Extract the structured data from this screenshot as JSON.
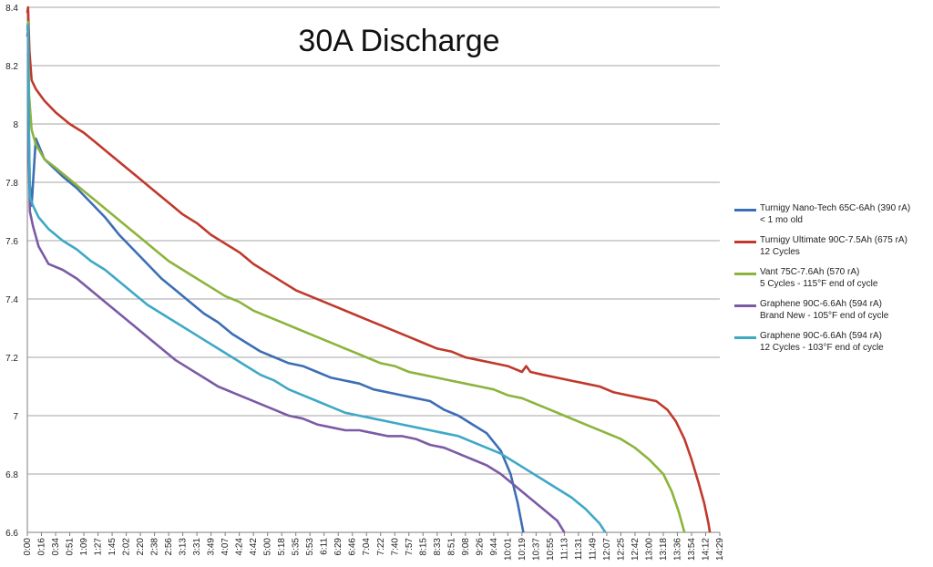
{
  "chart_data": {
    "type": "line",
    "title": "30A Discharge",
    "xlabel": "",
    "ylabel": "",
    "ylim": [
      6.6,
      8.4
    ],
    "y_ticks": [
      "6.6",
      "6.8",
      "7",
      "7.2",
      "7.4",
      "7.6",
      "7.8",
      "8",
      "8.2",
      "8.4"
    ],
    "x_ticks": [
      "0:00",
      "0:16",
      "0:34",
      "0:51",
      "1:09",
      "1:27",
      "1:45",
      "2:02",
      "2:20",
      "2:38",
      "2:56",
      "3:13",
      "3:31",
      "3:49",
      "4:07",
      "4:24",
      "4:42",
      "5:00",
      "5:18",
      "5:35",
      "5:53",
      "6:11",
      "6:29",
      "6:46",
      "7:04",
      "7:22",
      "7:40",
      "7:57",
      "8:15",
      "8:33",
      "8:51",
      "9:08",
      "9:26",
      "9:44",
      "10:01",
      "10:19",
      "10:37",
      "10:55",
      "11:13",
      "11:31",
      "11:49",
      "12:07",
      "12:25",
      "12:42",
      "13:00",
      "13:18",
      "13:36",
      "13:54",
      "14:12",
      "14:29"
    ],
    "x_unit": "minutes",
    "grid": true,
    "legend_position": "right",
    "series": [
      {
        "name": "Turnigy Nano-Tech 65C-6Ah (390 rA)",
        "name_line2": "< 1 mo old",
        "color": "#3c6eb4",
        "points": [
          [
            0,
            8.3
          ],
          [
            0.05,
            8.32
          ],
          [
            0.1,
            8.0
          ],
          [
            0.17,
            7.8
          ],
          [
            0.3,
            7.72
          ],
          [
            0.6,
            7.95
          ],
          [
            1.2,
            7.88
          ],
          [
            2.5,
            7.82
          ],
          [
            3.5,
            7.78
          ],
          [
            4.5,
            7.73
          ],
          [
            5.5,
            7.68
          ],
          [
            6.5,
            7.62
          ],
          [
            7.5,
            7.57
          ],
          [
            8.5,
            7.52
          ],
          [
            9.5,
            7.47
          ],
          [
            10.5,
            7.43
          ],
          [
            11.5,
            7.39
          ],
          [
            12.5,
            7.35
          ],
          [
            13.5,
            7.32
          ],
          [
            14.5,
            7.28
          ],
          [
            15.5,
            7.25
          ],
          [
            16.5,
            7.22
          ],
          [
            17.5,
            7.2
          ],
          [
            18.5,
            7.18
          ],
          [
            19.5,
            7.17
          ],
          [
            20.5,
            7.15
          ],
          [
            21.5,
            7.13
          ],
          [
            22.5,
            7.12
          ],
          [
            23.5,
            7.11
          ],
          [
            24.5,
            7.09
          ],
          [
            25.5,
            7.08
          ],
          [
            26.5,
            7.07
          ],
          [
            27.5,
            7.06
          ],
          [
            28.5,
            7.05
          ],
          [
            29.5,
            7.02
          ],
          [
            30.5,
            7.0
          ],
          [
            31.5,
            6.97
          ],
          [
            32.5,
            6.94
          ],
          [
            33.5,
            6.88
          ],
          [
            34.2,
            6.8
          ],
          [
            34.7,
            6.7
          ],
          [
            35.1,
            6.6
          ]
        ]
      },
      {
        "name": "Turnigy Ultimate 90C-7.5Ah (675 rA)",
        "name_line2": "12 Cycles",
        "color": "#c0392b",
        "points": [
          [
            0,
            8.38
          ],
          [
            0.05,
            8.4
          ],
          [
            0.15,
            8.25
          ],
          [
            0.3,
            8.15
          ],
          [
            0.6,
            8.12
          ],
          [
            1.2,
            8.08
          ],
          [
            2,
            8.04
          ],
          [
            3,
            8.0
          ],
          [
            4,
            7.97
          ],
          [
            5,
            7.93
          ],
          [
            6,
            7.89
          ],
          [
            7,
            7.85
          ],
          [
            8,
            7.81
          ],
          [
            9,
            7.77
          ],
          [
            10,
            7.73
          ],
          [
            11,
            7.69
          ],
          [
            12,
            7.66
          ],
          [
            13,
            7.62
          ],
          [
            14,
            7.59
          ],
          [
            15,
            7.56
          ],
          [
            16,
            7.52
          ],
          [
            17,
            7.49
          ],
          [
            18,
            7.46
          ],
          [
            19,
            7.43
          ],
          [
            20,
            7.41
          ],
          [
            21,
            7.39
          ],
          [
            22,
            7.37
          ],
          [
            23,
            7.35
          ],
          [
            24,
            7.33
          ],
          [
            25,
            7.31
          ],
          [
            26,
            7.29
          ],
          [
            27,
            7.27
          ],
          [
            28,
            7.25
          ],
          [
            29,
            7.23
          ],
          [
            30,
            7.22
          ],
          [
            31,
            7.2
          ],
          [
            32,
            7.19
          ],
          [
            33,
            7.18
          ],
          [
            34,
            7.17
          ],
          [
            35,
            7.15
          ],
          [
            35.3,
            7.17
          ],
          [
            35.6,
            7.15
          ],
          [
            36.5,
            7.14
          ],
          [
            37.5,
            7.13
          ],
          [
            38.5,
            7.12
          ],
          [
            39.5,
            7.11
          ],
          [
            40.5,
            7.1
          ],
          [
            41.5,
            7.08
          ],
          [
            42.5,
            7.07
          ],
          [
            43.5,
            7.06
          ],
          [
            44.5,
            7.05
          ],
          [
            45.3,
            7.02
          ],
          [
            45.9,
            6.98
          ],
          [
            46.5,
            6.92
          ],
          [
            47.0,
            6.85
          ],
          [
            47.5,
            6.77
          ],
          [
            47.9,
            6.7
          ],
          [
            48.2,
            6.63
          ],
          [
            48.3,
            6.6
          ]
        ]
      },
      {
        "name": "Vant 75C-7.6Ah (570 rA)",
        "name_line2": "5 Cycles - 115°F end of cycle",
        "color": "#8cb43c",
        "points": [
          [
            0,
            8.33
          ],
          [
            0.05,
            8.35
          ],
          [
            0.12,
            8.1
          ],
          [
            0.3,
            7.98
          ],
          [
            0.6,
            7.93
          ],
          [
            1.2,
            7.88
          ],
          [
            2,
            7.85
          ],
          [
            3,
            7.81
          ],
          [
            4,
            7.77
          ],
          [
            5,
            7.73
          ],
          [
            6,
            7.69
          ],
          [
            7,
            7.65
          ],
          [
            8,
            7.61
          ],
          [
            9,
            7.57
          ],
          [
            10,
            7.53
          ],
          [
            11,
            7.5
          ],
          [
            12,
            7.47
          ],
          [
            13,
            7.44
          ],
          [
            14,
            7.41
          ],
          [
            15,
            7.39
          ],
          [
            16,
            7.36
          ],
          [
            17,
            7.34
          ],
          [
            18,
            7.32
          ],
          [
            19,
            7.3
          ],
          [
            20,
            7.28
          ],
          [
            21,
            7.26
          ],
          [
            22,
            7.24
          ],
          [
            23,
            7.22
          ],
          [
            24,
            7.2
          ],
          [
            25,
            7.18
          ],
          [
            26,
            7.17
          ],
          [
            27,
            7.15
          ],
          [
            28,
            7.14
          ],
          [
            29,
            7.13
          ],
          [
            30,
            7.12
          ],
          [
            31,
            7.11
          ],
          [
            32,
            7.1
          ],
          [
            33,
            7.09
          ],
          [
            34,
            7.07
          ],
          [
            35,
            7.06
          ],
          [
            36,
            7.04
          ],
          [
            37,
            7.02
          ],
          [
            38,
            7.0
          ],
          [
            39,
            6.98
          ],
          [
            40,
            6.96
          ],
          [
            41,
            6.94
          ],
          [
            42,
            6.92
          ],
          [
            43,
            6.89
          ],
          [
            44,
            6.85
          ],
          [
            45,
            6.8
          ],
          [
            45.6,
            6.74
          ],
          [
            46.1,
            6.67
          ],
          [
            46.5,
            6.6
          ]
        ]
      },
      {
        "name": "Graphene 90C-6.6Ah (594 rA)",
        "name_line2": "Brand New - 105°F end of cycle",
        "color": "#7b5aa6",
        "points": [
          [
            0,
            8.3
          ],
          [
            0.05,
            8.32
          ],
          [
            0.1,
            7.9
          ],
          [
            0.18,
            7.7
          ],
          [
            0.4,
            7.65
          ],
          [
            0.8,
            7.58
          ],
          [
            1.5,
            7.52
          ],
          [
            2.5,
            7.5
          ],
          [
            3.5,
            7.47
          ],
          [
            4.5,
            7.43
          ],
          [
            5.5,
            7.39
          ],
          [
            6.5,
            7.35
          ],
          [
            7.5,
            7.31
          ],
          [
            8.5,
            7.27
          ],
          [
            9.5,
            7.23
          ],
          [
            10.5,
            7.19
          ],
          [
            11.5,
            7.16
          ],
          [
            12.5,
            7.13
          ],
          [
            13.5,
            7.1
          ],
          [
            14.5,
            7.08
          ],
          [
            15.5,
            7.06
          ],
          [
            16.5,
            7.04
          ],
          [
            17.5,
            7.02
          ],
          [
            18.5,
            7.0
          ],
          [
            19.5,
            6.99
          ],
          [
            20.5,
            6.97
          ],
          [
            21.5,
            6.96
          ],
          [
            22.5,
            6.95
          ],
          [
            23.5,
            6.95
          ],
          [
            24.5,
            6.94
          ],
          [
            25.5,
            6.93
          ],
          [
            26.5,
            6.93
          ],
          [
            27.5,
            6.92
          ],
          [
            28.5,
            6.9
          ],
          [
            29.5,
            6.89
          ],
          [
            30.5,
            6.87
          ],
          [
            31.5,
            6.85
          ],
          [
            32.5,
            6.83
          ],
          [
            33.5,
            6.8
          ],
          [
            34.5,
            6.76
          ],
          [
            35.5,
            6.72
          ],
          [
            36.5,
            6.68
          ],
          [
            37.5,
            6.64
          ],
          [
            38.0,
            6.6
          ]
        ]
      },
      {
        "name": "Graphene 90C-6.6Ah (594 rA)",
        "name_line2": "12 Cycles - 103°F end of cycle",
        "color": "#3ea8c6",
        "points": [
          [
            0,
            8.32
          ],
          [
            0.05,
            8.34
          ],
          [
            0.1,
            8.0
          ],
          [
            0.18,
            7.75
          ],
          [
            0.4,
            7.72
          ],
          [
            0.8,
            7.68
          ],
          [
            1.5,
            7.64
          ],
          [
            2.5,
            7.6
          ],
          [
            3.5,
            7.57
          ],
          [
            4.5,
            7.53
          ],
          [
            5.5,
            7.5
          ],
          [
            6.5,
            7.46
          ],
          [
            7.5,
            7.42
          ],
          [
            8.5,
            7.38
          ],
          [
            9.5,
            7.35
          ],
          [
            10.5,
            7.32
          ],
          [
            11.5,
            7.29
          ],
          [
            12.5,
            7.26
          ],
          [
            13.5,
            7.23
          ],
          [
            14.5,
            7.2
          ],
          [
            15.5,
            7.17
          ],
          [
            16.5,
            7.14
          ],
          [
            17.5,
            7.12
          ],
          [
            18.5,
            7.09
          ],
          [
            19.5,
            7.07
          ],
          [
            20.5,
            7.05
          ],
          [
            21.5,
            7.03
          ],
          [
            22.5,
            7.01
          ],
          [
            23.5,
            7.0
          ],
          [
            24.5,
            6.99
          ],
          [
            25.5,
            6.98
          ],
          [
            26.5,
            6.97
          ],
          [
            27.5,
            6.96
          ],
          [
            28.5,
            6.95
          ],
          [
            29.5,
            6.94
          ],
          [
            30.5,
            6.93
          ],
          [
            31.5,
            6.91
          ],
          [
            32.5,
            6.89
          ],
          [
            33.5,
            6.87
          ],
          [
            34.5,
            6.84
          ],
          [
            35.5,
            6.81
          ],
          [
            36.5,
            6.78
          ],
          [
            37.5,
            6.75
          ],
          [
            38.5,
            6.72
          ],
          [
            39.5,
            6.68
          ],
          [
            40.5,
            6.63
          ],
          [
            40.9,
            6.6
          ]
        ]
      }
    ]
  }
}
